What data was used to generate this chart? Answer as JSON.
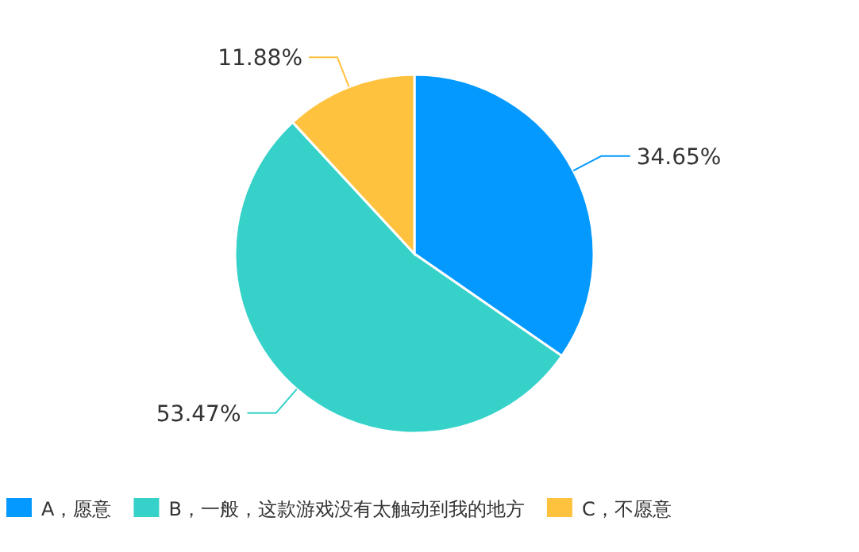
{
  "chart_data": {
    "type": "pie",
    "categories": [
      "A，愿意",
      "B，一般，这款游戏没有太触动到我的地方",
      "C，不愿意"
    ],
    "values": [
      34.65,
      53.47,
      11.88
    ],
    "colors": [
      "#0399fe",
      "#36d1c9",
      "#ffc23e"
    ],
    "value_labels": [
      "34.65%",
      "53.47%",
      "11.88%"
    ],
    "legend": "bottom"
  }
}
